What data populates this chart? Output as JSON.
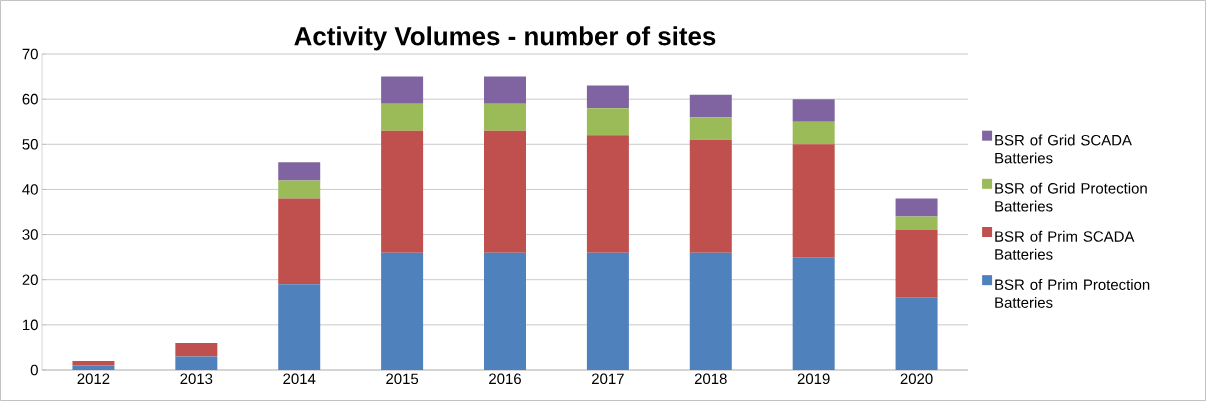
{
  "chart_data": {
    "type": "bar",
    "stacked": true,
    "title": "Activity Volumes - number of sites",
    "categories": [
      "2012",
      "2013",
      "2014",
      "2015",
      "2016",
      "2017",
      "2018",
      "2019",
      "2020"
    ],
    "series": [
      {
        "name": "BSR of Prim Protection Batteries",
        "color": "#4f81bd",
        "values": [
          1,
          3,
          19,
          26,
          26,
          26,
          26,
          25,
          16
        ]
      },
      {
        "name": "BSR of Prim SCADA Batteries",
        "color": "#c0504d",
        "values": [
          1,
          3,
          19,
          27,
          27,
          26,
          25,
          25,
          15
        ]
      },
      {
        "name": "BSR of Grid Protection Batteries",
        "color": "#9bbb59",
        "values": [
          0,
          0,
          4,
          6,
          6,
          6,
          5,
          5,
          3
        ]
      },
      {
        "name": "BSR of Grid SCADA Batteries",
        "color": "#8064a2",
        "values": [
          0,
          0,
          4,
          6,
          6,
          5,
          5,
          5,
          4
        ]
      }
    ],
    "ylim": [
      0,
      70
    ],
    "yticks": [
      0,
      10,
      20,
      30,
      40,
      50,
      60,
      70
    ],
    "grid": "y",
    "legend": "right"
  }
}
